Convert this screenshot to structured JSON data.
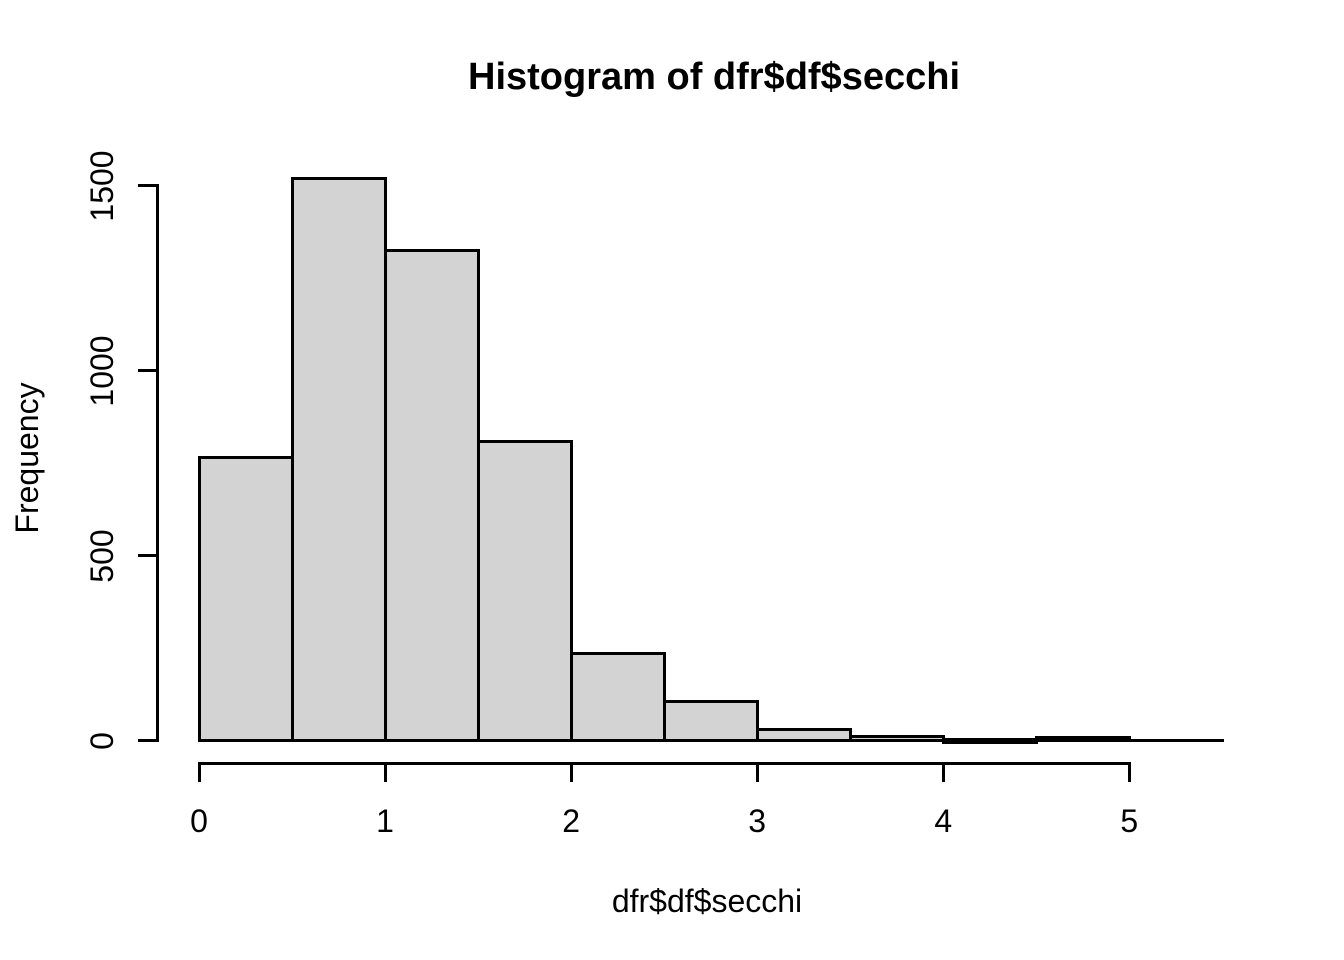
{
  "chart_data": {
    "type": "bar",
    "subtype": "histogram",
    "title": "Histogram of dfr$df$secchi",
    "xlabel": "dfr$df$secchi",
    "ylabel": "Frequency",
    "bin_edges": [
      0,
      0.5,
      1,
      1.5,
      2,
      2.5,
      3,
      3.5,
      4,
      4.5,
      5
    ],
    "counts": [
      765,
      1520,
      1325,
      810,
      235,
      105,
      30,
      10,
      4,
      8
    ],
    "x_ticks": [
      0,
      1,
      2,
      3,
      4,
      5
    ],
    "y_ticks": [
      0,
      500,
      1000,
      1500
    ],
    "xlim": [
      0,
      5.5
    ],
    "ylim": [
      0,
      1520
    ],
    "bar_fill": "#d3d3d3",
    "bar_border": "#000000",
    "axis_color": "#000000",
    "text_color": "#000000",
    "background": "#ffffff",
    "grid": false
  }
}
